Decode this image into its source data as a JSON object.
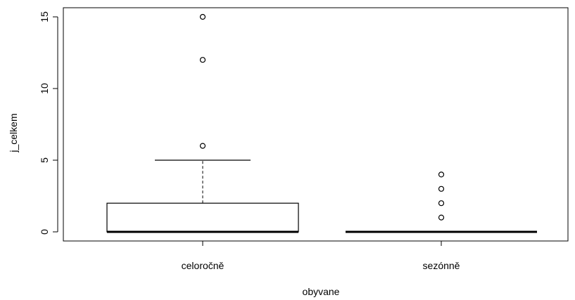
{
  "chart_data": {
    "type": "boxplot",
    "xlabel": "obyvane",
    "ylabel": "j_celkem",
    "ylim": [
      0,
      15
    ],
    "yticks": [
      0,
      5,
      10,
      15
    ],
    "grid": false,
    "colors": {
      "box": "#000000",
      "background": "#ffffff"
    },
    "groups": [
      {
        "label": "celoročně",
        "min": 0,
        "q1": 0,
        "median": 0,
        "q3": 2,
        "whisker_high": 5,
        "outliers": [
          6,
          12,
          15
        ]
      },
      {
        "label": "sezónně",
        "min": 0,
        "q1": 0,
        "median": 0,
        "q3": 0,
        "whisker_high": 0,
        "outliers": [
          1,
          2,
          3,
          4
        ]
      }
    ]
  }
}
